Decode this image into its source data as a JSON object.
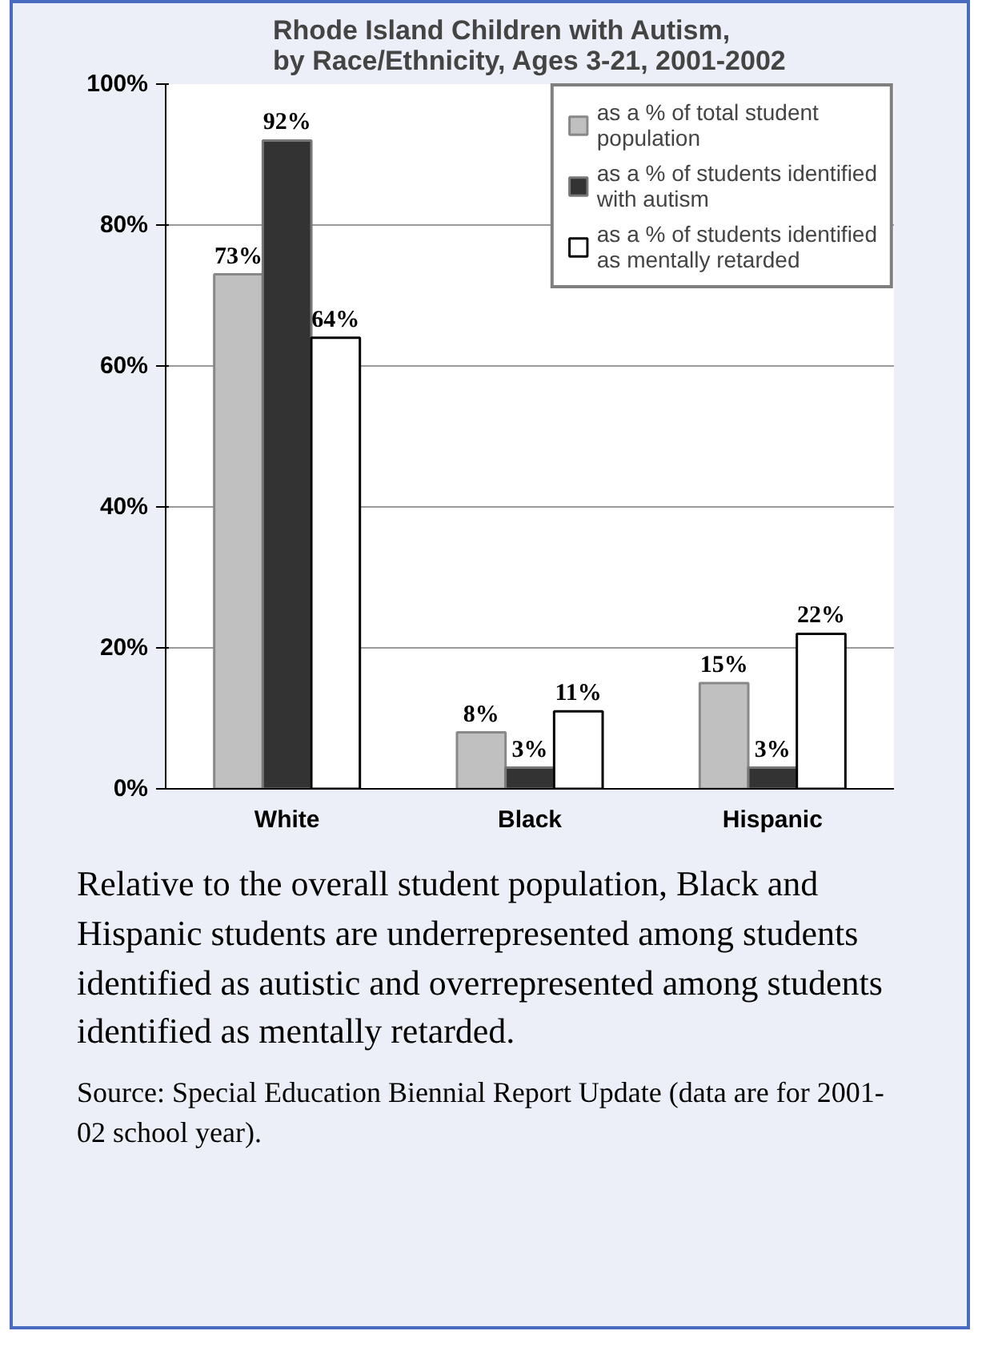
{
  "chart_data": {
    "type": "bar",
    "title": "Rhode Island Children with Autism,\nby Race/Ethnicity, Ages 3-21, 2001-2002",
    "categories": [
      "White",
      "Black",
      "Hispanic"
    ],
    "series": [
      {
        "name": "as a % of total student population",
        "color": "#c0c0c0",
        "values": [
          73,
          8,
          15
        ],
        "value_labels": [
          "73%",
          "8%",
          "15%"
        ]
      },
      {
        "name": "as a % of students identified with autism",
        "color": "#333333",
        "values": [
          92,
          3,
          3
        ],
        "value_labels": [
          "92%",
          "3%",
          "3%"
        ]
      },
      {
        "name": "as a % of students identified as mentally retarded",
        "color": "#ffffff",
        "values": [
          64,
          11,
          22
        ],
        "value_labels": [
          "64%",
          "11%",
          "22%"
        ]
      }
    ],
    "ylim": [
      0,
      100
    ],
    "yticks": [
      {
        "value": 0,
        "label": "0%"
      },
      {
        "value": 20,
        "label": "20%"
      },
      {
        "value": 40,
        "label": "40%"
      },
      {
        "value": 60,
        "label": "60%"
      },
      {
        "value": 80,
        "label": "80%"
      },
      {
        "value": 100,
        "label": "100%"
      }
    ],
    "grid": "y",
    "legend": "top right",
    "annotations": [
      "Relative to the overall student population, Black and Hispanic students are underrepresented among students identified as autistic and overrepresented among students identified as mentally retarded.",
      "Source: Special Education Biennial Report Update (data are for 2001-02 school year)."
    ]
  }
}
